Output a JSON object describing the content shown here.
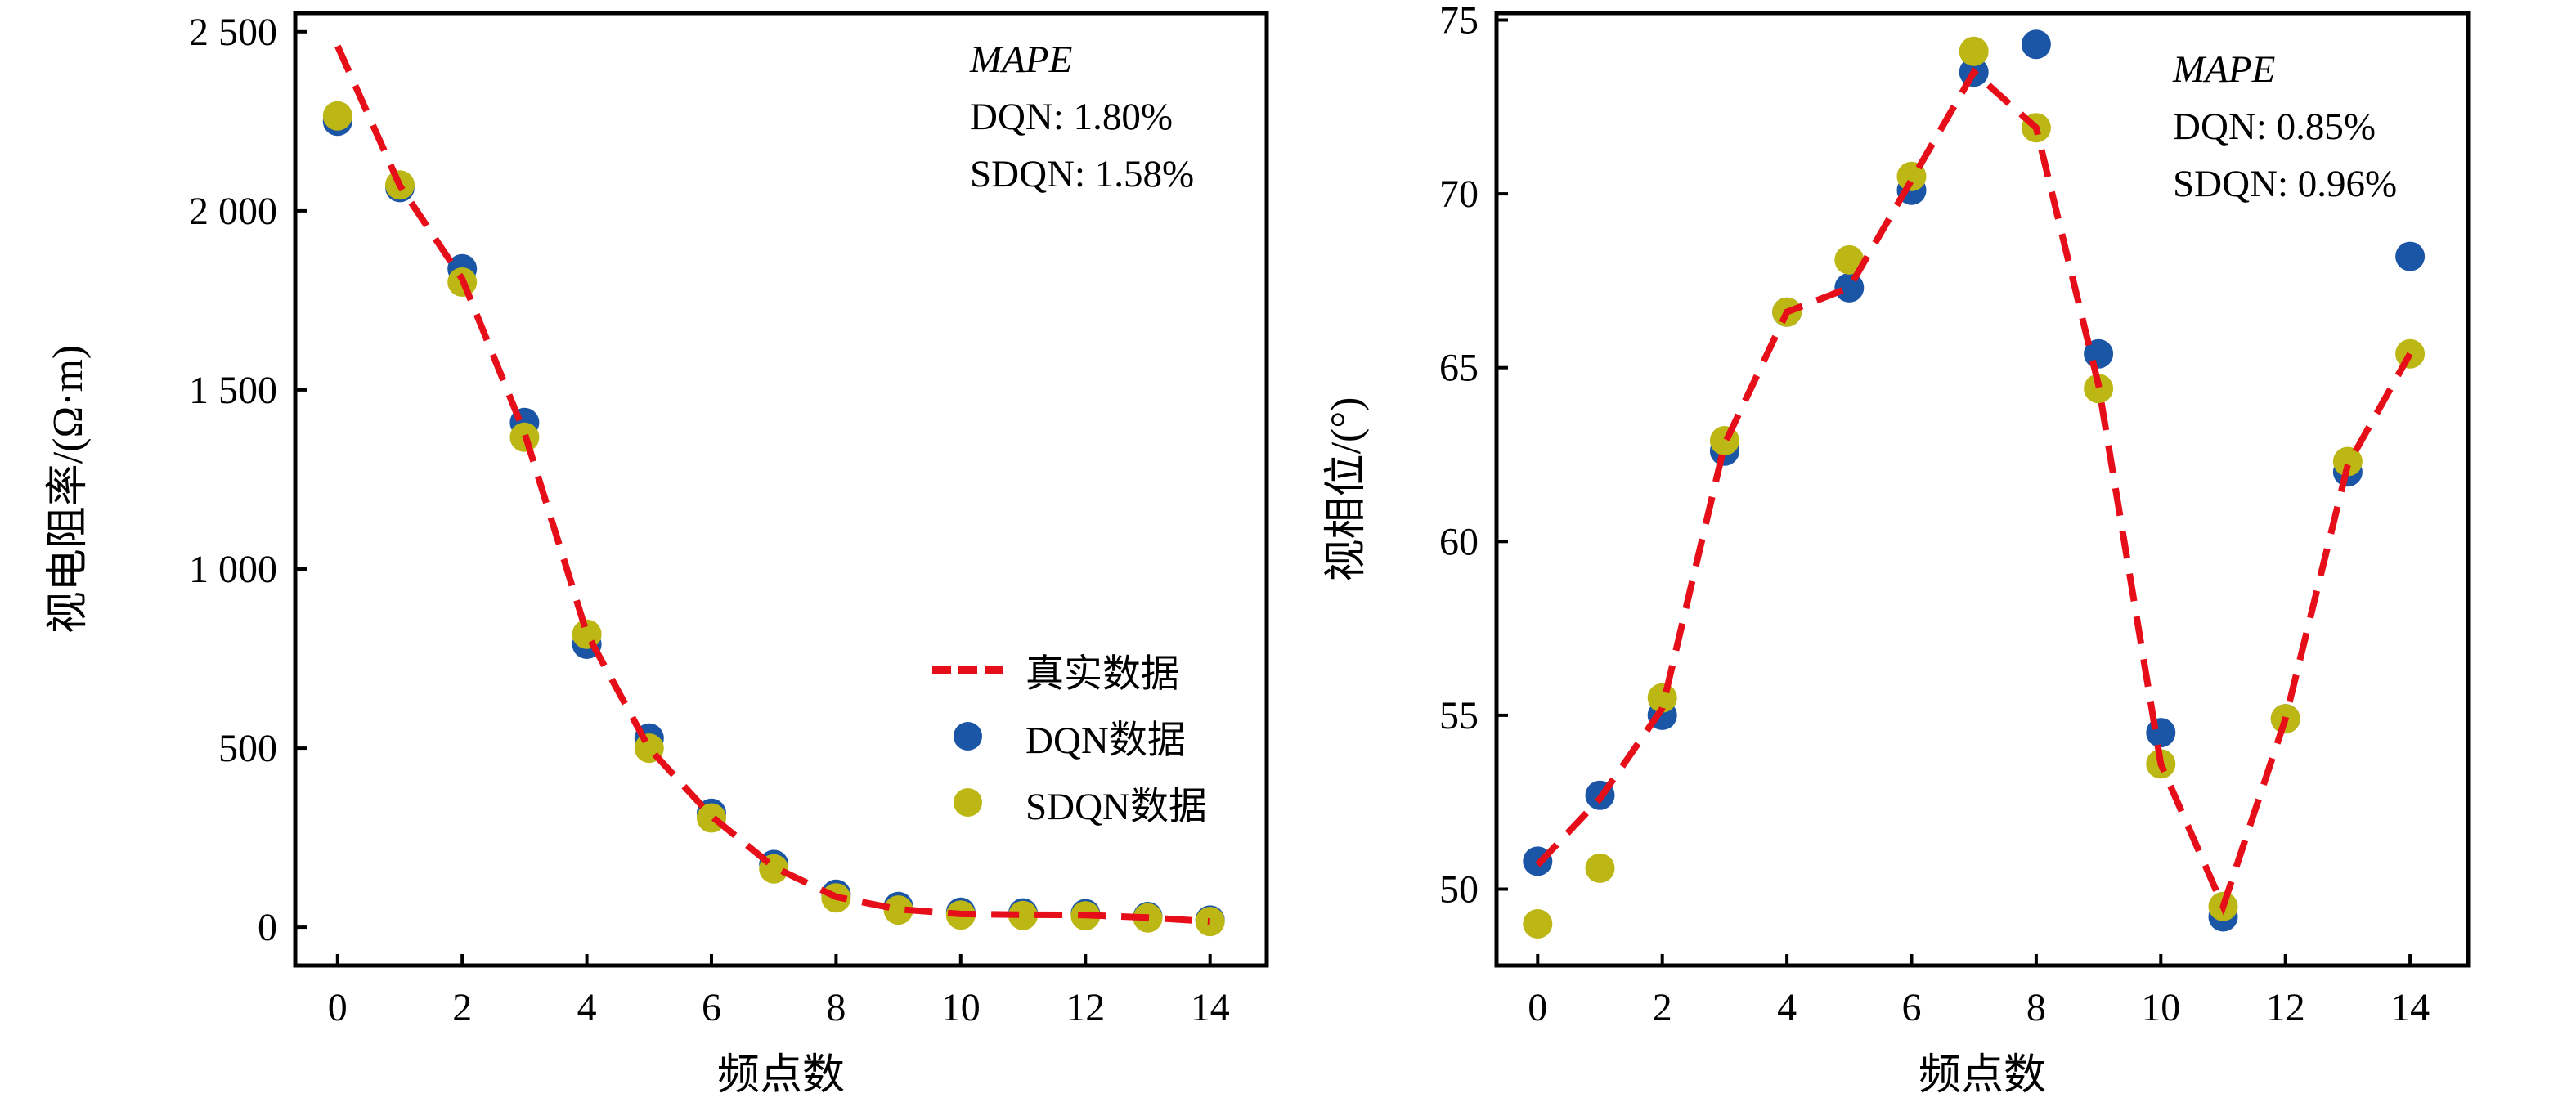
{
  "page": {
    "background": "#ffffff"
  },
  "colors": {
    "true_line": "#e60e19",
    "dqn": "#1b55a5",
    "sdqn": "#bcb714",
    "axis": "#000000",
    "text": "#000000"
  },
  "chart_data": [
    {
      "type": "line+scatter",
      "title": "",
      "xlabel": "频点数",
      "ylabel": "视电阻率/(Ω·m)",
      "x": [
        0,
        1,
        2,
        3,
        4,
        5,
        6,
        7,
        8,
        9,
        10,
        11,
        12,
        13,
        14
      ],
      "series": [
        {
          "name": "真实数据",
          "role": "true_line",
          "style": "dashed-line",
          "values": [
            2460,
            2070,
            1810,
            1380,
            820,
            500,
            310,
            168,
            85,
            50,
            37,
            35,
            34,
            27,
            16
          ]
        },
        {
          "name": "DQN数据",
          "role": "dqn",
          "style": "scatter",
          "mape": "1.80%",
          "values": [
            2250,
            2065,
            1838,
            1409,
            790,
            528,
            318,
            175,
            92,
            58,
            42,
            40,
            38,
            30,
            20
          ]
        },
        {
          "name": "SDQN数据",
          "role": "sdqn",
          "style": "scatter",
          "mape": "1.58%",
          "values": [
            2265,
            2072,
            1801,
            1368,
            818,
            500,
            305,
            163,
            82,
            48,
            34,
            33,
            32,
            26,
            16
          ]
        }
      ],
      "xlim": [
        -0.68,
        14.91
      ],
      "ylim": [
        -107,
        2552
      ],
      "xticks": {
        "values": [
          0,
          2,
          4,
          6,
          8,
          10,
          12,
          14
        ],
        "labels": [
          "0",
          "2",
          "4",
          "6",
          "8",
          "10",
          "12",
          "14"
        ]
      },
      "yticks": {
        "values": [
          0,
          500,
          1000,
          1500,
          2000,
          2500
        ],
        "labels": [
          "0",
          "500",
          "1 000",
          "1 500",
          "2 000",
          "2 500"
        ]
      },
      "grid": false,
      "legend_position": "inside-center-right",
      "annotation": {
        "title": "MAPE",
        "lines": [
          "DQN: 1.80%",
          "SDQN: 1.58%"
        ]
      }
    },
    {
      "type": "line+scatter",
      "title": "",
      "xlabel": "频点数",
      "ylabel": "视相位/(°)",
      "x": [
        0,
        1,
        2,
        3,
        4,
        5,
        6,
        7,
        8,
        9,
        10,
        11,
        12,
        13,
        14
      ],
      "series": [
        {
          "name": "真实数据",
          "role": "true_line",
          "style": "dashed-line",
          "values": [
            50.7,
            52.6,
            55.2,
            62.8,
            66.6,
            67.3,
            70.4,
            73.5,
            71.9,
            64.5,
            53.6,
            49.5,
            54.9,
            62.2,
            65.4
          ]
        },
        {
          "name": "DQN数据",
          "role": "dqn",
          "style": "scatter",
          "mape": "0.85%",
          "values": [
            50.8,
            52.7,
            55.0,
            62.6,
            66.6,
            67.3,
            70.1,
            73.5,
            74.3,
            65.4,
            54.5,
            49.2,
            54.9,
            62.0,
            68.2
          ]
        },
        {
          "name": "SDQN数据",
          "role": "sdqn",
          "style": "scatter",
          "mape": "0.96%",
          "values": [
            49.0,
            50.6,
            55.5,
            62.9,
            66.6,
            68.1,
            70.5,
            74.1,
            71.9,
            64.4,
            53.6,
            49.5,
            54.9,
            62.3,
            65.4
          ]
        }
      ],
      "xlim": [
        -0.66,
        14.93
      ],
      "ylim": [
        47.8,
        75.2
      ],
      "xticks": {
        "values": [
          0,
          2,
          4,
          6,
          8,
          10,
          12,
          14
        ],
        "labels": [
          "0",
          "2",
          "4",
          "6",
          "8",
          "10",
          "12",
          "14"
        ]
      },
      "yticks": {
        "values": [
          50,
          55,
          60,
          65,
          70,
          75
        ],
        "labels": [
          "50",
          "55",
          "60",
          "65",
          "70",
          "75"
        ]
      },
      "grid": false,
      "annotation": {
        "title": "MAPE",
        "lines": [
          "DQN: 0.85%",
          "SDQN: 0.96%"
        ]
      }
    }
  ]
}
